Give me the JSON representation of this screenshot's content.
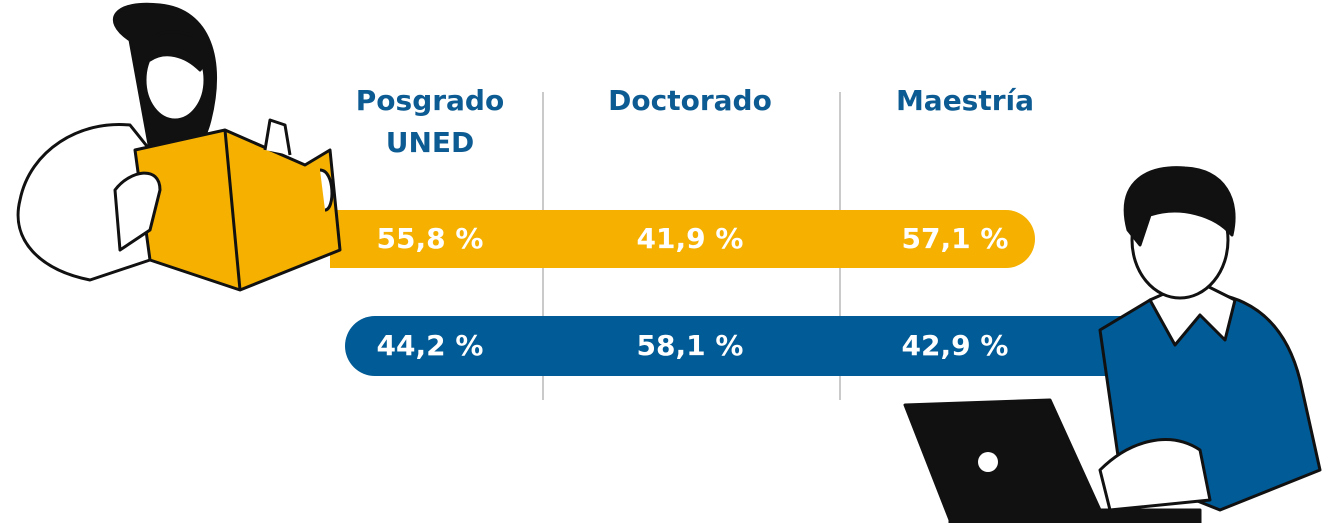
{
  "columns": [
    "Posgrado UNED",
    "Doctorado",
    "Maestría"
  ],
  "rows": [
    [
      "55,8 %",
      "41,9 %",
      "57,1 %"
    ],
    [
      "44,2 %",
      "58,1 %",
      "42,9 %"
    ]
  ]
}
